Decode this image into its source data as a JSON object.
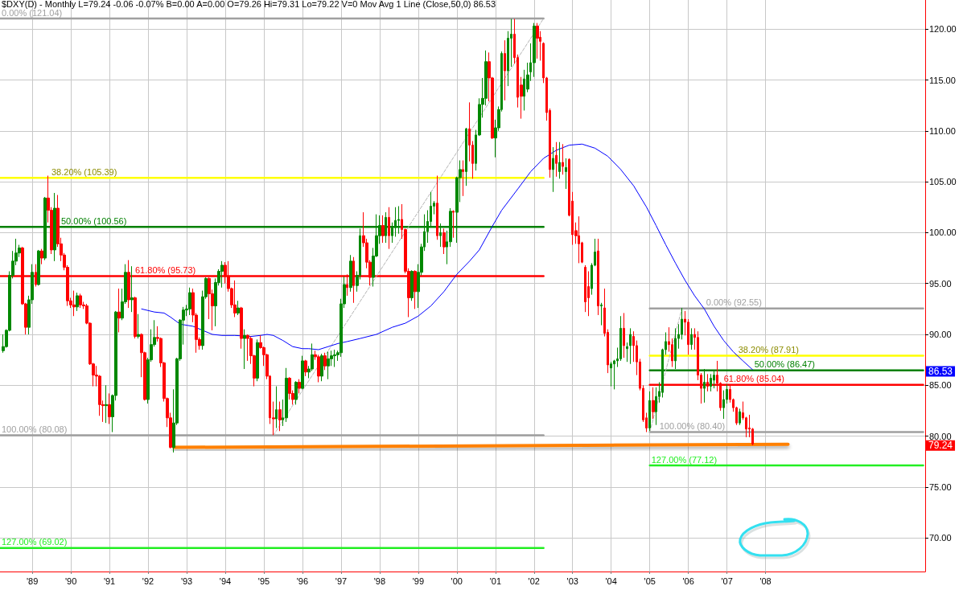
{
  "chart_data": {
    "type": "candlestick",
    "title": "$DXY(D) - Monthly",
    "subtitle": "L=79.24 -0.06 -0.07% B=0.00 A=0.00 O=79.26 Hi=79.31 Lo=79.22 V=0 Mov Avg 1 Line (Close,50,0) 86.53",
    "x": [
      "1988-04",
      "1988-05",
      "1988-06",
      "1988-07",
      "1988-08",
      "1988-09",
      "1988-10",
      "1988-11",
      "1988-12",
      "1989-01",
      "1989-02",
      "1989-03",
      "1989-04",
      "1989-05",
      "1989-06",
      "1989-07",
      "1989-08",
      "1989-09",
      "1989-10",
      "1989-11",
      "1989-12",
      "1990-01",
      "1990-02",
      "1990-03",
      "1990-04",
      "1990-05",
      "1990-06",
      "1990-07",
      "1990-08",
      "1990-09",
      "1990-10",
      "1990-11",
      "1990-12",
      "1991-01",
      "1991-02",
      "1991-03",
      "1991-04",
      "1991-05",
      "1991-06",
      "1991-07",
      "1991-08",
      "1991-09",
      "1991-10",
      "1991-11",
      "1991-12",
      "1992-01",
      "1992-02",
      "1992-03",
      "1992-04",
      "1992-05",
      "1992-06",
      "1992-07",
      "1992-08",
      "1992-09",
      "1992-10",
      "1992-11",
      "1992-12",
      "1993-01",
      "1993-02",
      "1993-03",
      "1993-04",
      "1993-05",
      "1993-06",
      "1993-07",
      "1993-08",
      "1993-09",
      "1993-10",
      "1993-11",
      "1993-12",
      "1994-01",
      "1994-02",
      "1994-03",
      "1994-04",
      "1994-05",
      "1994-06",
      "1994-07",
      "1994-08",
      "1994-09",
      "1994-10",
      "1994-11",
      "1994-12",
      "1995-01",
      "1995-02",
      "1995-03",
      "1995-04",
      "1995-05",
      "1995-06",
      "1995-07",
      "1995-08",
      "1995-09",
      "1995-10",
      "1995-11",
      "1995-12",
      "1996-01",
      "1996-02",
      "1996-03",
      "1996-04",
      "1996-05",
      "1996-06",
      "1996-07",
      "1996-08",
      "1996-09",
      "1996-10",
      "1996-11",
      "1996-12",
      "1997-01",
      "1997-02",
      "1997-03",
      "1997-04",
      "1997-05",
      "1997-06",
      "1997-07",
      "1997-08",
      "1997-09",
      "1997-10",
      "1997-11",
      "1997-12",
      "1998-01",
      "1998-02",
      "1998-03",
      "1998-04",
      "1998-05",
      "1998-06",
      "1998-07",
      "1998-08",
      "1998-09",
      "1998-10",
      "1998-11",
      "1998-12",
      "1999-01",
      "1999-02",
      "1999-03",
      "1999-04",
      "1999-05",
      "1999-06",
      "1999-07",
      "1999-08",
      "1999-09",
      "1999-10",
      "1999-11",
      "1999-12",
      "2000-01",
      "2000-02",
      "2000-03",
      "2000-04",
      "2000-05",
      "2000-06",
      "2000-07",
      "2000-08",
      "2000-09",
      "2000-10",
      "2000-11",
      "2000-12",
      "2001-01",
      "2001-02",
      "2001-03",
      "2001-04",
      "2001-05",
      "2001-06",
      "2001-07",
      "2001-08",
      "2001-09",
      "2001-10",
      "2001-11",
      "2001-12",
      "2002-01",
      "2002-02",
      "2002-03",
      "2002-04",
      "2002-05",
      "2002-06",
      "2002-07",
      "2002-08",
      "2002-09",
      "2002-10",
      "2002-11",
      "2002-12",
      "2003-01",
      "2003-02",
      "2003-03",
      "2003-04",
      "2003-05",
      "2003-06",
      "2003-07",
      "2003-08",
      "2003-09",
      "2003-10",
      "2003-11",
      "2003-12",
      "2004-01",
      "2004-02",
      "2004-03",
      "2004-04",
      "2004-05",
      "2004-06",
      "2004-07",
      "2004-08",
      "2004-09",
      "2004-10",
      "2004-11",
      "2004-12",
      "2005-01",
      "2005-02",
      "2005-03",
      "2005-04",
      "2005-05",
      "2005-06",
      "2005-07",
      "2005-08",
      "2005-09",
      "2005-10",
      "2005-11",
      "2005-12",
      "2006-01",
      "2006-02",
      "2006-03",
      "2006-04",
      "2006-05",
      "2006-06",
      "2006-07",
      "2006-08",
      "2006-09",
      "2006-10",
      "2006-11",
      "2006-12",
      "2007-01",
      "2007-02",
      "2007-03",
      "2007-04",
      "2007-05",
      "2007-06",
      "2007-07",
      "2007-08",
      "2007-09"
    ],
    "ohlc": [
      [
        88.4,
        90.0,
        88.2,
        88.8
      ],
      [
        88.8,
        90.5,
        88.7,
        90.4
      ],
      [
        90.4,
        96.2,
        90.3,
        95.8
      ],
      [
        95.8,
        98.2,
        95.5,
        97.2
      ],
      [
        97.2,
        99.4,
        96.8,
        98.0
      ],
      [
        98.0,
        98.8,
        97.6,
        98.5
      ],
      [
        98.5,
        98.6,
        92.9,
        93.0
      ],
      [
        93.0,
        93.1,
        90.0,
        90.7
      ],
      [
        90.7,
        93.8,
        90.0,
        93.4
      ],
      [
        93.4,
        96.9,
        93.0,
        96.1
      ],
      [
        96.1,
        96.9,
        94.7,
        94.9
      ],
      [
        94.9,
        98.3,
        94.8,
        98.2
      ],
      [
        98.2,
        98.4,
        96.9,
        97.5
      ],
      [
        97.5,
        103.5,
        97.3,
        103.4
      ],
      [
        103.4,
        105.6,
        101.0,
        102.2
      ],
      [
        102.2,
        102.5,
        97.9,
        98.3
      ],
      [
        98.3,
        103.9,
        97.2,
        102.4
      ],
      [
        102.4,
        103.7,
        98.6,
        98.9
      ],
      [
        98.9,
        99.5,
        97.2,
        97.8
      ],
      [
        97.8,
        98.0,
        96.3,
        96.6
      ],
      [
        96.6,
        96.8,
        92.8,
        93.3
      ],
      [
        93.3,
        93.6,
        92.6,
        92.9
      ],
      [
        92.9,
        94.3,
        91.8,
        92.7
      ],
      [
        92.7,
        94.1,
        92.3,
        93.8
      ],
      [
        93.8,
        94.0,
        92.6,
        92.9
      ],
      [
        92.9,
        93.2,
        92.5,
        92.8
      ],
      [
        92.8,
        93.0,
        91.0,
        91.1
      ],
      [
        91.1,
        91.2,
        87.0,
        87.1
      ],
      [
        87.1,
        87.2,
        84.9,
        86.0
      ],
      [
        86.0,
        86.9,
        84.9,
        85.9
      ],
      [
        85.9,
        86.0,
        82.0,
        83.1
      ],
      [
        83.1,
        83.5,
        81.4,
        83.0
      ],
      [
        83.0,
        85.0,
        81.3,
        83.1
      ],
      [
        83.1,
        84.2,
        81.2,
        81.9
      ],
      [
        81.9,
        84.1,
        80.4,
        84.0
      ],
      [
        84.0,
        92.3,
        83.5,
        92.2
      ],
      [
        92.2,
        94.5,
        90.2,
        91.6
      ],
      [
        91.6,
        94.5,
        91.4,
        93.2
      ],
      [
        93.2,
        96.9,
        93.0,
        96.1
      ],
      [
        96.1,
        97.3,
        92.6,
        93.4
      ],
      [
        93.4,
        96.7,
        92.2,
        93.6
      ],
      [
        93.6,
        93.7,
        89.6,
        89.8
      ],
      [
        89.8,
        92.0,
        89.6,
        90.0
      ],
      [
        90.0,
        90.1,
        85.8,
        88.2
      ],
      [
        88.2,
        88.3,
        83.5,
        83.6
      ],
      [
        83.6,
        87.7,
        83.2,
        87.5
      ],
      [
        87.5,
        90.5,
        87.3,
        89.0
      ],
      [
        89.0,
        91.4,
        88.8,
        89.7
      ],
      [
        89.7,
        90.8,
        89.3,
        89.6
      ],
      [
        89.6,
        89.7,
        86.8,
        87.2
      ],
      [
        87.2,
        87.3,
        83.4,
        83.7
      ],
      [
        83.7,
        83.8,
        80.9,
        81.8
      ],
      [
        81.8,
        82.3,
        78.8,
        78.9
      ],
      [
        78.9,
        84.6,
        78.4,
        81.3
      ],
      [
        81.3,
        87.7,
        81.1,
        87.6
      ],
      [
        87.6,
        91.5,
        87.4,
        91.4
      ],
      [
        91.4,
        92.7,
        89.0,
        92.4
      ],
      [
        92.4,
        92.9,
        91.8,
        92.5
      ],
      [
        92.5,
        94.6,
        91.9,
        94.1
      ],
      [
        94.1,
        94.5,
        91.2,
        91.9
      ],
      [
        91.9,
        92.1,
        88.2,
        89.5
      ],
      [
        89.5,
        89.7,
        88.5,
        88.9
      ],
      [
        88.9,
        94.3,
        88.5,
        93.7
      ],
      [
        93.7,
        95.6,
        93.5,
        95.5
      ],
      [
        95.5,
        95.6,
        91.5,
        94.0
      ],
      [
        94.0,
        94.4,
        90.4,
        92.8
      ],
      [
        92.8,
        95.5,
        90.8,
        95.1
      ],
      [
        95.1,
        96.4,
        94.8,
        96.2
      ],
      [
        96.2,
        97.2,
        94.6,
        96.8
      ],
      [
        96.8,
        97.1,
        95.0,
        95.7
      ],
      [
        95.7,
        97.2,
        94.2,
        94.5
      ],
      [
        94.5,
        94.6,
        92.6,
        92.9
      ],
      [
        92.9,
        95.3,
        91.7,
        92.1
      ],
      [
        92.1,
        93.3,
        91.9,
        92.6
      ],
      [
        92.6,
        92.7,
        88.6,
        89.6
      ],
      [
        89.6,
        90.5,
        86.6,
        89.9
      ],
      [
        89.9,
        90.0,
        87.4,
        89.6
      ],
      [
        89.6,
        89.8,
        87.1,
        87.9
      ],
      [
        87.9,
        88.0,
        84.9,
        85.7
      ],
      [
        85.7,
        89.5,
        85.4,
        89.2
      ],
      [
        89.2,
        89.9,
        88.6,
        88.7
      ],
      [
        88.7,
        88.8,
        86.9,
        88.0
      ],
      [
        88.0,
        88.1,
        85.6,
        85.9
      ],
      [
        85.9,
        86.0,
        81.2,
        81.8
      ],
      [
        81.8,
        83.4,
        80.1,
        81.7
      ],
      [
        81.7,
        84.9,
        80.8,
        82.6
      ],
      [
        82.6,
        83.4,
        80.5,
        81.6
      ],
      [
        81.6,
        83.6,
        81.0,
        81.8
      ],
      [
        81.8,
        86.7,
        81.4,
        85.7
      ],
      [
        85.7,
        85.8,
        83.6,
        84.2
      ],
      [
        84.2,
        84.5,
        83.1,
        83.6
      ],
      [
        83.6,
        85.4,
        83.1,
        85.3
      ],
      [
        85.3,
        85.6,
        84.2,
        84.7
      ],
      [
        84.7,
        87.9,
        84.6,
        87.4
      ],
      [
        87.4,
        87.5,
        85.9,
        86.3
      ],
      [
        86.3,
        86.9,
        85.7,
        86.6
      ],
      [
        86.6,
        89.1,
        86.4,
        88.0
      ],
      [
        88.0,
        88.4,
        87.5,
        87.8
      ],
      [
        87.8,
        88.0,
        85.3,
        85.9
      ],
      [
        85.9,
        88.1,
        85.4,
        87.9
      ],
      [
        87.9,
        88.2,
        86.5,
        86.9
      ],
      [
        86.9,
        88.3,
        85.6,
        87.6
      ],
      [
        87.6,
        88.4,
        86.9,
        87.9
      ],
      [
        87.9,
        88.5,
        86.8,
        88.0
      ],
      [
        88.0,
        88.4,
        87.4,
        88.2
      ],
      [
        88.2,
        93.5,
        87.8,
        93.0
      ],
      [
        93.0,
        95.7,
        92.6,
        94.9
      ],
      [
        94.9,
        95.9,
        93.8,
        94.6
      ],
      [
        94.6,
        97.8,
        94.2,
        97.2
      ],
      [
        97.2,
        97.6,
        93.1,
        94.8
      ],
      [
        94.8,
        96.2,
        94.2,
        95.8
      ],
      [
        95.8,
        100.4,
        95.4,
        99.7
      ],
      [
        99.7,
        102.0,
        98.6,
        99.0
      ],
      [
        99.0,
        99.4,
        96.5,
        97.1
      ],
      [
        97.1,
        97.3,
        94.8,
        95.6
      ],
      [
        95.6,
        98.5,
        94.7,
        97.7
      ],
      [
        97.7,
        101.8,
        97.6,
        99.7
      ],
      [
        99.7,
        101.7,
        98.9,
        100.7
      ],
      [
        100.7,
        101.7,
        99.0,
        99.7
      ],
      [
        99.7,
        102.0,
        99.0,
        101.5
      ],
      [
        101.5,
        102.5,
        98.4,
        99.7
      ],
      [
        99.7,
        101.0,
        99.0,
        100.5
      ],
      [
        100.5,
        102.5,
        99.6,
        101.2
      ],
      [
        101.2,
        102.6,
        99.9,
        101.3
      ],
      [
        101.3,
        102.8,
        99.4,
        100.3
      ],
      [
        100.3,
        100.4,
        96.0,
        96.2
      ],
      [
        96.2,
        96.5,
        91.7,
        93.6
      ],
      [
        93.6,
        96.3,
        93.3,
        96.2
      ],
      [
        96.2,
        96.3,
        92.5,
        94.2
      ],
      [
        94.2,
        96.9,
        92.6,
        96.1
      ],
      [
        96.1,
        98.9,
        95.8,
        98.6
      ],
      [
        98.6,
        101.8,
        98.2,
        100.1
      ],
      [
        100.1,
        102.2,
        99.0,
        101.1
      ],
      [
        101.1,
        104.0,
        100.5,
        102.6
      ],
      [
        102.6,
        103.1,
        101.8,
        102.9
      ],
      [
        102.9,
        105.6,
        99.3,
        99.7
      ],
      [
        99.7,
        100.9,
        98.6,
        100.0
      ],
      [
        100.0,
        100.4,
        97.9,
        98.6
      ],
      [
        98.6,
        100.2,
        96.9,
        99.1
      ],
      [
        99.1,
        102.4,
        98.6,
        102.1
      ],
      [
        102.1,
        102.2,
        99.5,
        102.0
      ],
      [
        102.0,
        105.5,
        99.0,
        105.4
      ],
      [
        105.4,
        107.1,
        103.0,
        106.2
      ],
      [
        106.2,
        107.1,
        103.6,
        106.0
      ],
      [
        106.0,
        110.3,
        104.6,
        110.2
      ],
      [
        110.2,
        112.8,
        107.0,
        108.6
      ],
      [
        108.6,
        109.0,
        105.3,
        106.8
      ],
      [
        106.8,
        110.1,
        106.1,
        109.6
      ],
      [
        109.6,
        113.2,
        109.5,
        112.6
      ],
      [
        112.6,
        115.2,
        111.3,
        113.2
      ],
      [
        113.2,
        117.9,
        112.5,
        116.8
      ],
      [
        116.8,
        117.7,
        112.9,
        115.2
      ],
      [
        115.2,
        115.3,
        109.2,
        109.3
      ],
      [
        109.3,
        111.1,
        107.4,
        110.3
      ],
      [
        110.3,
        112.4,
        110.0,
        112.1
      ],
      [
        112.1,
        117.8,
        111.9,
        117.6
      ],
      [
        117.6,
        118.9,
        113.0,
        115.9
      ],
      [
        115.9,
        119.8,
        114.4,
        119.1
      ],
      [
        119.1,
        121.0,
        116.3,
        119.5
      ],
      [
        119.5,
        121.0,
        116.6,
        117.2
      ],
      [
        117.2,
        117.5,
        112.3,
        113.3
      ],
      [
        114.5,
        115.3,
        111.2,
        113.4
      ],
      [
        113.4,
        116.0,
        112.0,
        115.1
      ],
      [
        114.1,
        116.7,
        113.8,
        115.5
      ],
      [
        115.8,
        118.6,
        114.9,
        116.7
      ],
      [
        116.7,
        120.6,
        115.3,
        120.3
      ],
      [
        120.3,
        120.6,
        117.1,
        119.1
      ],
      [
        119.2,
        119.8,
        116.9,
        118.8
      ],
      [
        118.6,
        118.7,
        114.7,
        115.2
      ],
      [
        115.2,
        115.3,
        111.0,
        111.8
      ],
      [
        112.0,
        112.2,
        105.4,
        106.2
      ],
      [
        106.2,
        108.4,
        104.0,
        107.3
      ],
      [
        107.6,
        108.9,
        105.5,
        106.8
      ],
      [
        106.0,
        108.9,
        105.3,
        106.9
      ],
      [
        106.9,
        108.7,
        105.7,
        106.5
      ],
      [
        106.0,
        107.3,
        104.3,
        106.4
      ],
      [
        107.2,
        107.3,
        101.6,
        101.7
      ],
      [
        103.1,
        104.0,
        98.8,
        99.8
      ],
      [
        100.2,
        101.0,
        98.9,
        99.7
      ],
      [
        99.7,
        101.6,
        97.0,
        98.9
      ],
      [
        99.0,
        99.1,
        97.0,
        97.1
      ],
      [
        96.6,
        96.8,
        92.2,
        93.2
      ],
      [
        94.7,
        96.2,
        91.8,
        93.6
      ],
      [
        94.5,
        97.0,
        93.9,
        96.8
      ],
      [
        96.8,
        99.4,
        96.7,
        98.1
      ],
      [
        98.2,
        99.4,
        91.9,
        92.8
      ],
      [
        92.8,
        93.1,
        90.9,
        92.9
      ],
      [
        92.6,
        94.5,
        89.8,
        90.1
      ],
      [
        90.2,
        90.5,
        86.2,
        87.0
      ],
      [
        86.7,
        87.3,
        84.9,
        87.1
      ],
      [
        87.1,
        87.5,
        84.6,
        87.4
      ],
      [
        87.4,
        88.7,
        86.8,
        87.6
      ],
      [
        87.6,
        91.8,
        87.4,
        90.6
      ],
      [
        90.6,
        92.1,
        87.7,
        88.9
      ],
      [
        88.6,
        89.2,
        87.3,
        88.8
      ],
      [
        88.9,
        90.6,
        87.1,
        90.0
      ],
      [
        89.8,
        90.3,
        87.3,
        88.9
      ],
      [
        88.9,
        89.4,
        86.0,
        87.3
      ],
      [
        87.3,
        87.6,
        84.5,
        84.7
      ],
      [
        84.7,
        85.0,
        81.4,
        81.6
      ],
      [
        81.8,
        82.3,
        80.4,
        80.8
      ],
      [
        80.8,
        84.4,
        80.5,
        83.5
      ],
      [
        83.5,
        84.8,
        81.7,
        82.4
      ],
      [
        82.4,
        84.8,
        81.1,
        83.9
      ],
      [
        83.9,
        85.3,
        83.3,
        84.4
      ],
      [
        84.3,
        88.6,
        83.8,
        88.5
      ],
      [
        88.5,
        90.2,
        88.0,
        89.3
      ],
      [
        89.3,
        90.7,
        88.3,
        89.0
      ],
      [
        89.0,
        89.6,
        86.8,
        87.4
      ],
      [
        87.4,
        90.6,
        86.6,
        89.6
      ],
      [
        89.6,
        91.0,
        88.6,
        90.0
      ],
      [
        90.0,
        92.6,
        89.5,
        91.5
      ],
      [
        91.5,
        92.3,
        89.9,
        91.2
      ],
      [
        91.2,
        91.5,
        88.0,
        89.0
      ],
      [
        89.0,
        90.6,
        88.5,
        90.0
      ],
      [
        90.0,
        90.6,
        88.5,
        89.7
      ],
      [
        89.7,
        90.3,
        85.5,
        86.0
      ],
      [
        86.0,
        86.2,
        83.2,
        84.7
      ],
      [
        84.7,
        86.6,
        83.3,
        85.3
      ],
      [
        85.3,
        86.1,
        84.4,
        84.9
      ],
      [
        84.9,
        86.1,
        84.4,
        85.7
      ],
      [
        85.5,
        86.5,
        84.7,
        86.0
      ],
      [
        86.0,
        87.4,
        84.4,
        85.2
      ],
      [
        85.2,
        85.3,
        82.5,
        82.8
      ],
      [
        82.8,
        84.5,
        81.7,
        83.6
      ],
      [
        83.6,
        85.1,
        83.2,
        84.6
      ],
      [
        84.6,
        85.1,
        83.3,
        83.6
      ],
      [
        83.6,
        83.7,
        82.4,
        82.8
      ],
      [
        82.8,
        82.9,
        81.1,
        81.3
      ],
      [
        81.3,
        82.7,
        81.1,
        82.4
      ],
      [
        82.3,
        83.4,
        81.6,
        81.8
      ],
      [
        81.8,
        81.9,
        79.9,
        80.7
      ],
      [
        80.8,
        82.1,
        79.9,
        80.7
      ],
      [
        80.7,
        80.8,
        79.1,
        79.24
      ]
    ],
    "colors": [
      "#008800",
      "#008800",
      "#008800",
      "#008800",
      "#008800",
      "#008800",
      "#ff0000",
      "#ff0000",
      "#008800",
      "#008800",
      "#ff0000",
      "#008800",
      "#ff0000",
      "#008800",
      "#ff0000",
      "#ff0000",
      "#008800",
      "#ff0000",
      "#ff0000",
      "#ff0000",
      "#ff0000",
      "#ff0000",
      "#ff0000",
      "#008800",
      "#ff0000",
      "#ff0000",
      "#ff0000",
      "#ff0000",
      "#ff0000",
      "#ff0000",
      "#ff0000",
      "#ff0000",
      "#008800",
      "#ff0000",
      "#008800",
      "#008800",
      "#ff0000",
      "#008800",
      "#008800",
      "#ff0000",
      "#008800",
      "#ff0000",
      "#008800",
      "#ff0000",
      "#ff0000",
      "#008800",
      "#008800",
      "#008800",
      "#ff0000",
      "#ff0000",
      "#ff0000",
      "#ff0000",
      "#ff0000",
      "#008800",
      "#008800",
      "#008800",
      "#008800",
      "#008800",
      "#008800",
      "#ff0000",
      "#ff0000",
      "#ff0000",
      "#008800",
      "#008800",
      "#ff0000",
      "#ff0000",
      "#008800",
      "#008800",
      "#008800",
      "#ff0000",
      "#ff0000",
      "#ff0000",
      "#ff0000",
      "#008800",
      "#ff0000",
      "#008800",
      "#ff0000",
      "#ff0000",
      "#ff0000",
      "#008800",
      "#ff0000",
      "#ff0000",
      "#ff0000",
      "#ff0000",
      "#ff0000",
      "#008800",
      "#ff0000",
      "#008800",
      "#008800",
      "#ff0000",
      "#ff0000",
      "#008800",
      "#ff0000",
      "#008800",
      "#ff0000",
      "#008800",
      "#008800",
      "#ff0000",
      "#ff0000",
      "#008800",
      "#ff0000",
      "#008800",
      "#008800",
      "#008800",
      "#008800",
      "#008800",
      "#008800",
      "#ff0000",
      "#008800",
      "#ff0000",
      "#008800",
      "#008800",
      "#ff0000",
      "#ff0000",
      "#ff0000",
      "#008800",
      "#008800",
      "#008800",
      "#ff0000",
      "#008800",
      "#ff0000",
      "#008800",
      "#008800",
      "#008800",
      "#ff0000",
      "#ff0000",
      "#ff0000",
      "#008800",
      "#ff0000",
      "#008800",
      "#008800",
      "#008800",
      "#008800",
      "#008800",
      "#008800",
      "#ff0000",
      "#008800",
      "#ff0000",
      "#008800",
      "#008800",
      "#ff0000",
      "#008800",
      "#008800",
      "#ff0000",
      "#008800",
      "#ff0000",
      "#ff0000",
      "#008800",
      "#008800",
      "#008800",
      "#008800",
      "#ff0000",
      "#ff0000",
      "#008800",
      "#008800",
      "#008800",
      "#ff0000",
      "#008800",
      "#008800",
      "#ff0000",
      "#ff0000",
      "#ff0000",
      "#008800",
      "#008800",
      "#008800",
      "#008800",
      "#ff0000",
      "#ff0000",
      "#ff0000",
      "#ff0000",
      "#ff0000",
      "#008800",
      "#ff0000",
      "#008800",
      "#ff0000",
      "#008800",
      "#ff0000",
      "#ff0000",
      "#ff0000",
      "#ff0000",
      "#ff0000",
      "#ff0000",
      "#ff0000",
      "#008800",
      "#008800",
      "#ff0000",
      "#008800",
      "#ff0000",
      "#ff0000",
      "#008800",
      "#008800",
      "#008800",
      "#008800",
      "#ff0000",
      "#008800",
      "#008800",
      "#ff0000",
      "#ff0000",
      "#ff0000",
      "#ff0000",
      "#ff0000",
      "#008800",
      "#ff0000",
      "#008800",
      "#008800",
      "#008800",
      "#008800",
      "#ff0000",
      "#ff0000",
      "#008800",
      "#008800",
      "#008800",
      "#ff0000",
      "#ff0000",
      "#008800",
      "#ff0000",
      "#ff0000",
      "#ff0000",
      "#008800",
      "#ff0000",
      "#008800",
      "#008800",
      "#ff0000",
      "#ff0000",
      "#008800",
      "#008800",
      "#ff0000",
      "#ff0000",
      "#ff0000",
      "#008800",
      "#ff0000",
      "#ff0000",
      "#ff0000",
      "#ff0000"
    ],
    "value_labels": [
      null,
      null,
      null,
      null,
      null,
      null,
      null,
      null,
      null,
      null,
      null,
      null,
      null,
      null,
      null,
      null,
      null,
      null,
      null,
      null,
      null,
      null,
      null,
      null,
      null,
      null,
      null,
      null,
      null,
      null,
      null,
      null,
      null,
      null,
      null,
      null,
      null,
      null,
      null,
      null,
      null,
      null,
      null,
      null,
      null,
      null,
      null,
      null,
      null,
      null,
      null,
      null,
      null,
      null,
      null,
      null,
      null,
      null,
      null,
      null,
      null,
      null,
      null,
      null,
      null,
      null,
      null,
      null,
      null,
      null,
      null,
      null,
      null,
      null,
      null,
      null,
      null,
      null,
      null,
      null,
      null,
      null,
      null,
      null,
      null,
      null,
      null,
      null,
      null,
      null,
      null,
      null,
      null,
      null,
      null,
      null,
      null,
      null,
      null,
      null,
      null,
      null,
      null,
      null,
      null,
      null,
      null,
      null,
      null,
      null,
      null,
      null,
      null,
      null,
      null,
      null,
      null,
      null,
      null,
      null,
      null,
      null,
      null,
      null,
      null,
      null,
      null,
      null,
      null,
      null,
      null,
      null,
      null,
      null,
      null,
      null,
      null,
      null,
      null,
      null,
      null,
      null,
      null,
      null,
      null,
      null,
      null,
      null,
      null,
      null,
      null,
      null,
      null,
      null,
      null,
      null,
      null,
      null,
      null,
      null,
      null,
      null,
      null,
      null,
      null,
      null,
      null,
      null,
      null,
      null,
      null,
      null,
      null,
      null,
      null,
      null,
      null,
      null,
      null,
      null,
      null,
      null,
      null,
      null,
      null,
      null,
      null,
      null,
      null,
      null,
      null,
      null,
      null,
      null,
      null,
      null,
      null,
      null,
      null,
      null,
      null,
      null,
      null,
      null,
      null,
      null,
      null,
      null,
      null,
      null,
      null,
      null,
      null,
      null,
      null,
      null,
      null,
      null,
      null,
      null,
      null,
      null,
      null,
      null,
      null,
      null,
      null,
      null,
      null,
      null,
      null,
      null,
      null,
      "79.24"
    ],
    "series": [
      {
        "type": "line",
        "name": "0.00% (121.04)",
        "color": "#a0a0a0",
        "x": [
          "1988-03",
          "2002-04"
        ],
        "values": [
          121.04,
          121.04
        ]
      },
      {
        "type": "line",
        "name": "38.20% (105.39)",
        "color": "#ffff00",
        "x": [
          "1988-03",
          "2002-04"
        ],
        "values": [
          105.39,
          105.39
        ]
      },
      {
        "type": "line",
        "name": "50.00% (100.56)",
        "color": "#008000",
        "x": [
          "1988-03",
          "2002-04"
        ],
        "values": [
          100.56,
          100.56
        ]
      },
      {
        "type": "line",
        "name": "61.80% (95.73)",
        "color": "#ff0000",
        "x": [
          "1988-03",
          "2002-04"
        ],
        "values": [
          95.73,
          95.73
        ]
      },
      {
        "type": "line",
        "name": "100.00% (80.08)",
        "color": "#a0a0a0",
        "x": [
          "1988-03",
          "2002-04"
        ],
        "values": [
          80.08,
          80.08
        ]
      },
      {
        "type": "line",
        "name": "127.00% (69.02)",
        "color": "#22ee22",
        "x": [
          "1988-03",
          "2002-04"
        ],
        "values": [
          69.02,
          69.02
        ]
      },
      {
        "type": "line",
        "name": "0.00% (92.55)",
        "color": "#a0a0a0",
        "x": [
          "2005-01",
          "2012-02"
        ],
        "values": [
          92.55,
          92.55
        ]
      },
      {
        "type": "line",
        "name": "38.20% (87.91)",
        "color": "#ffff00",
        "x": [
          "2005-01",
          "2012-02"
        ],
        "values": [
          87.91,
          87.91
        ]
      },
      {
        "type": "line",
        "name": "50.00% (86.47)",
        "color": "#008000",
        "x": [
          "2005-01",
          "2012-02"
        ],
        "values": [
          86.47,
          86.47
        ]
      },
      {
        "type": "line",
        "name": "61.80% (85.04)",
        "color": "#ff0000",
        "x": [
          "2005-01",
          "2012-02"
        ],
        "values": [
          85.04,
          85.04
        ]
      },
      {
        "type": "line",
        "name": "100.00% (80.40)",
        "color": "#a0a0a0",
        "x": [
          "2005-01",
          "2012-02"
        ],
        "values": [
          80.4,
          80.4
        ]
      },
      {
        "type": "line",
        "name": "127.00% (77.12)",
        "color": "#22ee22",
        "x": [
          "2005-01",
          "2012-02"
        ],
        "values": [
          77.12,
          77.12
        ]
      },
      {
        "type": "line",
        "color": "#b4b4b4",
        "line_style": "dashed",
        "x": [
          "1995-04",
          "2002-04"
        ],
        "values": [
          80.08,
          121.04
        ]
      },
      {
        "type": "line",
        "color": "#b4b4b4",
        "line_style": "dashed",
        "x": [
          "2005-01",
          "2005-11"
        ],
        "values": [
          80.4,
          92.55
        ]
      },
      {
        "type": "line",
        "color": "#ff8000",
        "x": [
          "1992-09",
          "2008-08"
        ],
        "values": [
          78.9,
          79.2
        ]
      },
      {
        "type": "line",
        "color": "#0000ff",
        "x": [
          "1991-11",
          "1992-03",
          "1992-06",
          "1992-08",
          "1992-11",
          "1993-03",
          "1993-06",
          "1993-09",
          "1993-12",
          "1994-04",
          "1994-09",
          "1994-12",
          "1995-02",
          "1995-04",
          "1995-07",
          "1995-10",
          "1996-01",
          "1996-03",
          "1996-06",
          "1996-09",
          "1996-12",
          "1997-03",
          "1997-07",
          "1997-12",
          "1998-05",
          "1998-09",
          "1999-01",
          "1999-05",
          "1999-09",
          "2000-01",
          "2000-05",
          "2000-08",
          "2000-12",
          "2001-03",
          "2001-08",
          "2001-12",
          "2002-04",
          "2002-08",
          "2002-12",
          "2003-04",
          "2003-08",
          "2003-12",
          "2004-04",
          "2004-08",
          "2004-12",
          "2005-03",
          "2005-06",
          "2005-09",
          "2005-12",
          "2006-03",
          "2006-06",
          "2006-09",
          "2006-12",
          "2007-03",
          "2007-06",
          "2007-09"
        ],
        "values": [
          92.5,
          92.2,
          92.1,
          91.7,
          91.0,
          90.8,
          90.4,
          90.0,
          89.9,
          89.9,
          89.8,
          89.9,
          90.0,
          89.9,
          89.4,
          88.8,
          88.6,
          88.6,
          88.5,
          88.8,
          89.1,
          89.3,
          89.6,
          90.0,
          90.7,
          91.1,
          91.8,
          92.8,
          94.2,
          95.9,
          97.2,
          98.3,
          100.6,
          102.2,
          104.3,
          106.0,
          107.3,
          108.1,
          108.6,
          108.7,
          108.3,
          107.5,
          106.2,
          104.6,
          102.5,
          100.7,
          98.8,
          97.0,
          95.3,
          93.8,
          92.5,
          90.8,
          89.4,
          88.3,
          87.4,
          86.53
        ]
      }
    ],
    "annotations": [
      {
        "text": "86.53",
        "x": "2012-02-20",
        "y": 86.53
      }
    ],
    "xlim": [
      "1988-03-01",
      "2012-02-20"
    ],
    "ylim": [
      66.7,
      122.86
    ],
    "xticks": [
      {
        "value": "1989",
        "label": "'89"
      },
      {
        "value": "1990",
        "label": "'90"
      },
      {
        "value": "1991",
        "label": "'91"
      },
      {
        "value": "1992",
        "label": "'92"
      },
      {
        "value": "1993",
        "label": "'93"
      },
      {
        "value": "1994",
        "label": "'94"
      },
      {
        "value": "1995",
        "label": "'95"
      },
      {
        "value": "1996",
        "label": "'96"
      },
      {
        "value": "1997",
        "label": "'97"
      },
      {
        "value": "1998",
        "label": "'98"
      },
      {
        "value": "1999",
        "label": "'99"
      },
      {
        "value": "2000",
        "label": "'00"
      },
      {
        "value": "2001",
        "label": "'01"
      },
      {
        "value": "2002",
        "label": "'02"
      },
      {
        "value": "2003",
        "label": "'03"
      },
      {
        "value": "2004",
        "label": "'04"
      },
      {
        "value": "2005",
        "label": "'05"
      },
      {
        "value": "2006",
        "label": "'06"
      },
      {
        "value": "2007",
        "label": "'07"
      },
      {
        "value": "2008",
        "label": "'08"
      }
    ],
    "yticks": [
      {
        "value": 70,
        "label": "70.00"
      },
      {
        "value": 75,
        "label": "75.00"
      },
      {
        "value": 80,
        "label": "80.00"
      },
      {
        "value": 85,
        "label": "85.00"
      },
      {
        "value": 90,
        "label": "90.00"
      },
      {
        "value": 95,
        "label": "95.00"
      },
      {
        "value": 100,
        "label": "100.00"
      },
      {
        "value": 105,
        "label": "105.00"
      },
      {
        "value": 110,
        "label": "110.00"
      },
      {
        "value": 115,
        "label": "115.00"
      },
      {
        "value": 120,
        "label": "120.00"
      }
    ],
    "grid": true
  }
}
